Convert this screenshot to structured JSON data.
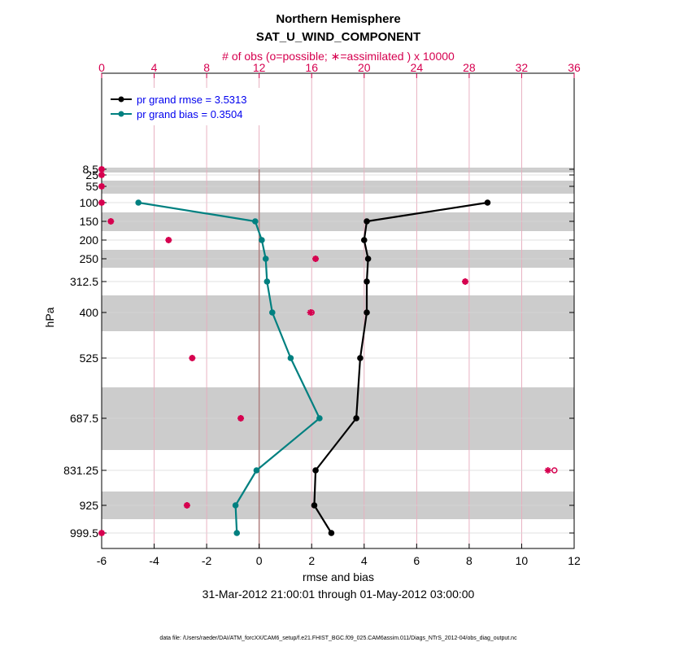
{
  "chart_data": {
    "type": "line",
    "title": "Northern Hemisphere",
    "subtitle": "SAT_U_WIND_COMPONENT",
    "top_axis_label": "# of obs (o=possible; ∗=assimilated ) x 10000",
    "xlabel": "rmse and bias",
    "ylabel": "hPa",
    "date_range": "31-Mar-2012 21:00:01 through 01-May-2012 03:00:00",
    "footnote": "data file: /Users/raeder/DAI/ATM_forcXX/CAM6_setup/f.e21.FHIST_BGC.f09_025.CAM6assim.011/Diags_NTrS_2012-04/obs_diag_output.nc",
    "xlim": [
      -6,
      12
    ],
    "x_ticks": [
      "-6",
      "-4",
      "-2",
      "0",
      "2",
      "4",
      "6",
      "8",
      "10",
      "12"
    ],
    "top_xlim": [
      0,
      36
    ],
    "top_ticks": [
      "0",
      "4",
      "8",
      "12",
      "16",
      "20",
      "24",
      "28",
      "32",
      "36"
    ],
    "levels": [
      8.5,
      25,
      55,
      100,
      150,
      200,
      250,
      312.5,
      400,
      525,
      687.5,
      831.25,
      925,
      999.5
    ],
    "level_labels": [
      "8.5",
      "25",
      "55",
      "100",
      "150",
      "200",
      "250",
      "312.5",
      "400",
      "525",
      "687.5",
      "831.25",
      "925",
      "999.5"
    ],
    "legend": [
      {
        "label": "pr grand rmse = 3.5313",
        "color": "#000000"
      },
      {
        "label": "pr grand bias = 0.3504",
        "color": "#008080"
      }
    ],
    "series": [
      {
        "name": "rmse",
        "color": "#000000",
        "levels": [
          100,
          150,
          200,
          250,
          312.5,
          400,
          525,
          687.5,
          831.25,
          925,
          999.5
        ],
        "values": [
          8.7,
          4.1,
          4.0,
          4.15,
          4.1,
          4.1,
          3.85,
          3.7,
          2.15,
          2.1,
          2.75
        ]
      },
      {
        "name": "bias",
        "color": "#008080",
        "levels": [
          100,
          150,
          200,
          250,
          312.5,
          400,
          525,
          687.5,
          831.25,
          925,
          999.5
        ],
        "values": [
          -4.6,
          -0.15,
          0.1,
          0.25,
          0.3,
          0.5,
          1.2,
          2.3,
          -0.1,
          -0.9,
          -0.85
        ]
      }
    ],
    "obs_possible": {
      "levels": [
        8.5,
        25,
        55,
        100,
        150,
        200,
        250,
        312.5,
        400,
        525,
        687.5,
        831.25,
        925,
        999.5
      ],
      "values": [
        0.0,
        0.0,
        0.0,
        0.0,
        0.7,
        5.1,
        16.3,
        27.7,
        16.0,
        6.9,
        10.6,
        34.5,
        6.5,
        0.0
      ]
    },
    "obs_assimilated": {
      "levels": [
        8.5,
        25,
        55,
        100,
        150,
        200,
        250,
        312.5,
        400,
        525,
        687.5,
        831.25,
        925,
        999.5
      ],
      "values": [
        0.0,
        0.0,
        0.0,
        0.0,
        0.7,
        5.1,
        16.3,
        27.7,
        15.9,
        6.9,
        10.6,
        34.0,
        6.5,
        0.0
      ]
    },
    "shaded_level_groups": [
      [
        8.5
      ],
      [
        55
      ],
      [
        150
      ],
      [
        250
      ],
      [
        400
      ],
      [
        687.5
      ],
      [
        925
      ]
    ]
  },
  "colors": {
    "rmse": "#000000",
    "bias": "#008080",
    "obs": "#d6004f",
    "band": "#cccccc",
    "legend_text": "#0000ee"
  }
}
